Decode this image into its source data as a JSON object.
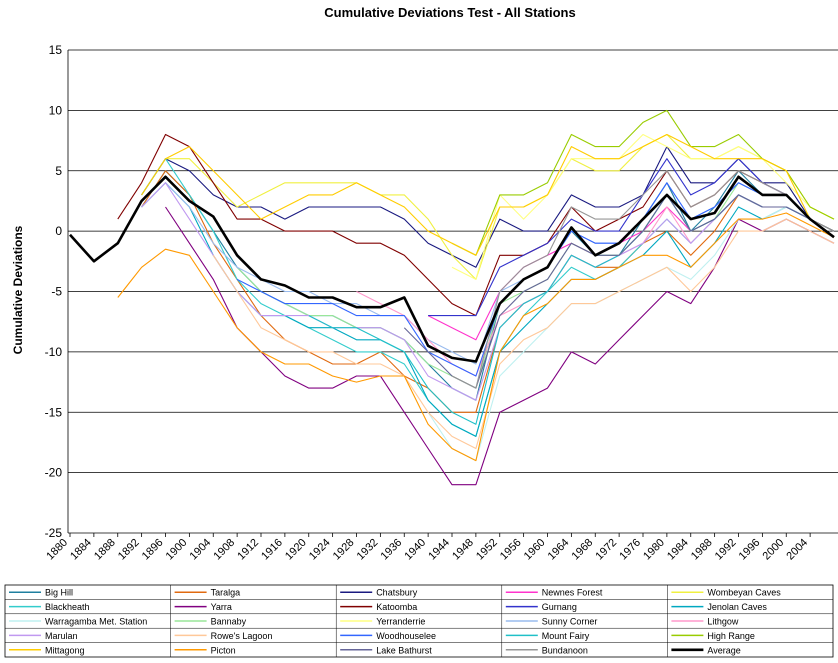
{
  "chart_data": {
    "type": "line",
    "title": "Cumulative Deviations Test - All Stations",
    "y_label": "Cumulative Deviations",
    "x": [
      1880,
      1884,
      1888,
      1892,
      1896,
      1900,
      1904,
      1908,
      1912,
      1916,
      1920,
      1924,
      1928,
      1932,
      1936,
      1940,
      1944,
      1948,
      1952,
      1956,
      1960,
      1964,
      1968,
      1972,
      1976,
      1980,
      1984,
      1988,
      1992,
      1996,
      2000,
      2004,
      2008
    ],
    "xlim": [
      1880,
      2008
    ],
    "xticks": [
      1880,
      1884,
      1888,
      1892,
      1896,
      1900,
      1904,
      1908,
      1912,
      1916,
      1920,
      1924,
      1928,
      1932,
      1936,
      1940,
      1944,
      1948,
      1952,
      1956,
      1960,
      1964,
      1968,
      1972,
      1976,
      1980,
      1984,
      1988,
      1992,
      1996,
      2000,
      2004
    ],
    "ylim": [
      -25,
      15
    ],
    "yticks": [
      -25,
      -20,
      -15,
      -10,
      -5,
      0,
      5,
      10,
      15
    ],
    "grid": true,
    "series": [
      {
        "name": "Big Hill",
        "color": "#1f7f9f",
        "values": [
          null,
          null,
          null,
          2,
          5,
          3,
          0,
          -3,
          -5,
          -6,
          -7,
          -7,
          -8,
          -8,
          -9,
          -11,
          -13,
          -14,
          -6,
          -4,
          -3,
          0,
          -2,
          -2,
          1,
          4,
          0,
          2,
          5,
          3,
          3,
          1,
          0
        ]
      },
      {
        "name": "Taralga",
        "color": "#e06a10",
        "values": [
          null,
          null,
          null,
          2,
          5,
          3,
          -1,
          -4,
          -7,
          -9,
          -10,
          -11,
          -11,
          -10,
          -12,
          -13,
          -15,
          -15,
          -8,
          -6,
          -5,
          -2,
          -3,
          -3,
          -1,
          0,
          -2,
          0,
          3,
          2,
          2,
          1,
          0
        ]
      },
      {
        "name": "Chatsbury",
        "color": "#1a1a80",
        "values": [
          null,
          null,
          null,
          3,
          6,
          5,
          3,
          2,
          2,
          1,
          2,
          2,
          2,
          2,
          1,
          -1,
          -2,
          -3,
          1,
          0,
          0,
          3,
          2,
          2,
          3,
          7,
          4,
          4,
          6,
          4,
          4,
          1,
          0
        ]
      },
      {
        "name": "Newnes Forest",
        "color": "#ff33cc",
        "values": [
          null,
          null,
          null,
          null,
          null,
          null,
          null,
          null,
          null,
          null,
          null,
          null,
          null,
          null,
          null,
          -7,
          -8,
          -9,
          -5,
          -3,
          -2,
          -1,
          -2,
          -1,
          0,
          2,
          0,
          1,
          3,
          2,
          2,
          1,
          0
        ]
      },
      {
        "name": "Wombeyan Caves",
        "color": "#f0f040",
        "values": [
          null,
          null,
          null,
          3,
          6,
          6,
          4,
          2,
          3,
          4,
          4,
          4,
          4,
          3,
          3,
          1,
          -2,
          -4,
          2,
          2,
          3,
          6,
          5,
          5,
          7,
          8,
          6,
          6,
          7,
          6,
          5,
          2,
          1
        ]
      },
      {
        "name": "Blackheath",
        "color": "#33cccc",
        "values": [
          null,
          null,
          null,
          3,
          6,
          3,
          0,
          -4,
          -6,
          -7,
          -8,
          -9,
          -10,
          -10,
          -11,
          -14,
          -16,
          -17,
          -10,
          -7,
          -5,
          -3,
          -4,
          -3,
          -1,
          1,
          -1,
          1,
          3,
          2,
          2,
          1,
          -0.5
        ]
      },
      {
        "name": "Yarra",
        "color": "#800080",
        "values": [
          null,
          null,
          null,
          null,
          2,
          -1,
          -4,
          -8,
          -10,
          -12,
          -13,
          -13,
          -12,
          -12,
          -15,
          -18,
          -21,
          -21,
          -15,
          -14,
          -13,
          -10,
          -11,
          -9,
          -7,
          -5,
          -6,
          -3,
          1,
          0,
          1,
          0,
          -1
        ]
      },
      {
        "name": "Katoomba",
        "color": "#800000",
        "values": [
          null,
          null,
          1,
          4,
          8,
          7,
          4,
          1,
          1,
          0,
          0,
          0,
          -1,
          -1,
          -2,
          -4,
          -6,
          -7,
          -2,
          -2,
          -1,
          2,
          0,
          1,
          2,
          5,
          2,
          3,
          5,
          4,
          3,
          1,
          0
        ]
      },
      {
        "name": "Gurnang",
        "color": "#3333cc",
        "values": [
          null,
          null,
          null,
          null,
          null,
          null,
          null,
          null,
          null,
          null,
          null,
          null,
          null,
          null,
          null,
          -7,
          -7,
          -7,
          -3,
          -2,
          -1,
          1,
          0,
          0,
          3,
          6,
          3,
          4,
          6,
          4,
          3,
          1,
          0
        ]
      },
      {
        "name": "Jenolan Caves",
        "color": "#00a8c0",
        "values": [
          null,
          null,
          null,
          2,
          4,
          2,
          -2,
          -5,
          -7,
          -7,
          -8,
          -8,
          -9,
          -9,
          -10,
          -14,
          -16,
          -17,
          -10,
          -8,
          -6,
          -4,
          -4,
          -3,
          -2,
          0,
          -3,
          -1,
          2,
          1,
          2,
          1,
          0
        ]
      },
      {
        "name": "Warragamba Met. Station",
        "color": "#bff0f0",
        "values": [
          null,
          null,
          null,
          null,
          null,
          null,
          null,
          null,
          null,
          null,
          null,
          null,
          null,
          null,
          null,
          -15,
          -18,
          -19,
          -12,
          -10,
          -8,
          -6,
          -6,
          -5,
          -4,
          -3,
          -4,
          -2,
          1,
          1,
          2,
          1,
          0
        ]
      },
      {
        "name": "Bannaby",
        "color": "#99e699",
        "values": [
          null,
          null,
          null,
          null,
          null,
          null,
          null,
          -3,
          -5,
          -6,
          -7,
          -7,
          -8,
          -8,
          -9,
          -11,
          -12,
          -13,
          -6,
          -5,
          -4,
          -1,
          -2,
          -2,
          0,
          3,
          0,
          1,
          4,
          3,
          3,
          1,
          0
        ]
      },
      {
        "name": "Yerranderrie",
        "color": "#ffff80",
        "values": [
          null,
          null,
          null,
          null,
          null,
          null,
          null,
          null,
          null,
          null,
          null,
          null,
          null,
          null,
          null,
          null,
          -3,
          -4,
          3,
          1,
          3,
          6,
          6,
          6,
          8,
          7,
          6,
          6,
          7,
          6,
          4,
          2,
          1
        ]
      },
      {
        "name": "Sunny Corner",
        "color": "#99bbee",
        "values": [
          null,
          null,
          null,
          2,
          4,
          2,
          -1,
          -3,
          -4,
          -5,
          -5,
          -6,
          -6,
          -7,
          -7,
          -9,
          -10,
          -11,
          -5,
          -4,
          -3,
          0,
          -1,
          -1,
          1,
          3,
          1,
          2,
          4,
          3,
          3,
          1,
          0
        ]
      },
      {
        "name": "Lithgow",
        "color": "#ff99cc",
        "values": [
          null,
          null,
          null,
          null,
          null,
          null,
          null,
          null,
          null,
          null,
          null,
          null,
          -5,
          -6,
          -7,
          -9,
          -11,
          -12,
          -7,
          -6,
          -5,
          -2,
          -3,
          -2,
          -1,
          2,
          -1,
          1,
          3,
          2,
          2,
          1,
          0
        ]
      },
      {
        "name": "Marulan",
        "color": "#c099f0",
        "values": [
          null,
          null,
          null,
          2,
          4,
          1,
          -2,
          -5,
          -7,
          -7,
          -7,
          -8,
          -8,
          -8,
          -9,
          -12,
          -13,
          -14,
          -8,
          -6,
          -5,
          -2,
          -3,
          -2,
          -1,
          1,
          -1,
          1,
          3,
          2,
          2,
          1,
          0
        ]
      },
      {
        "name": "Rowe's Lagoon",
        "color": "#ffc899",
        "values": [
          null,
          null,
          null,
          null,
          null,
          null,
          -2,
          -5,
          -8,
          -9,
          -10,
          -10,
          -11,
          -11,
          -12,
          -15,
          -17,
          -18,
          -11,
          -9,
          -8,
          -6,
          -6,
          -5,
          -4,
          -3,
          -5,
          -3,
          0,
          0,
          1,
          0,
          -1
        ]
      },
      {
        "name": "Woodhouselee",
        "color": "#3366ff",
        "values": [
          null,
          null,
          null,
          null,
          null,
          null,
          null,
          -4,
          -5,
          -6,
          -6,
          -6,
          -7,
          -7,
          -7,
          -10,
          -11,
          -12,
          -6,
          -4,
          -3,
          0,
          -1,
          -1,
          1,
          4,
          1,
          2,
          4,
          3,
          3,
          1,
          0
        ]
      },
      {
        "name": "Mount Fairy",
        "color": "#20c0c8",
        "values": [
          null,
          null,
          null,
          null,
          null,
          null,
          null,
          null,
          null,
          null,
          -7,
          -8,
          -8,
          -9,
          -10,
          -13,
          -15,
          -16,
          -8,
          -6,
          -5,
          -2,
          -3,
          -2,
          0,
          3,
          0,
          1,
          3,
          2,
          2,
          1,
          0
        ]
      },
      {
        "name": "High Range",
        "color": "#99cc00",
        "values": [
          null,
          null,
          null,
          null,
          null,
          null,
          null,
          null,
          null,
          null,
          null,
          null,
          null,
          null,
          null,
          null,
          -1,
          -2,
          3,
          3,
          4,
          8,
          7,
          7,
          9,
          10,
          7,
          7,
          8,
          6,
          5,
          2,
          1
        ]
      },
      {
        "name": "Mittagong",
        "color": "#ffcc00",
        "values": [
          null,
          null,
          null,
          3,
          6,
          7,
          5,
          3,
          1,
          2,
          3,
          3,
          4,
          3,
          2,
          0,
          -1,
          -2,
          2,
          2,
          3,
          7,
          6,
          6,
          7,
          8,
          7,
          6,
          6,
          6,
          5,
          1,
          0
        ]
      },
      {
        "name": "Picton",
        "color": "#ff9900",
        "values": [
          null,
          null,
          -5.5,
          -3,
          -1.5,
          -2,
          -5,
          -8,
          -10,
          -11,
          -11,
          -12,
          -12.5,
          -12,
          -12,
          -16,
          -18,
          -19,
          -10,
          -7,
          -6,
          -4,
          -4,
          -3,
          -2,
          -2,
          -3,
          -1,
          1,
          1,
          1.5,
          0.5,
          -0.5
        ]
      },
      {
        "name": "Lake Bathurst",
        "color": "#666699",
        "values": [
          null,
          null,
          null,
          null,
          null,
          null,
          null,
          null,
          null,
          null,
          null,
          null,
          null,
          null,
          -8,
          -10,
          -12,
          -13,
          -7,
          -5,
          -4,
          -1,
          -2,
          -2,
          0,
          3,
          0,
          1,
          3,
          2,
          2,
          1,
          0
        ]
      },
      {
        "name": "Bundanoon",
        "color": "#969696",
        "values": [
          null,
          null,
          null,
          null,
          null,
          null,
          null,
          null,
          null,
          null,
          null,
          null,
          null,
          null,
          null,
          null,
          -12,
          -13,
          -5,
          -3,
          -2,
          2,
          1,
          1,
          3,
          5,
          2,
          3,
          5,
          4,
          3,
          1,
          0
        ]
      },
      {
        "name": "Average",
        "color": "#000000",
        "values": [
          -0.3,
          -2.5,
          -1,
          2.5,
          4.5,
          2.5,
          1.2,
          -2,
          -4,
          -4.5,
          -5.5,
          -5.5,
          -6.3,
          -6.3,
          -5.5,
          -9.5,
          -10.5,
          -10.8,
          -6,
          -4,
          -3,
          0.3,
          -2,
          -1,
          1,
          3,
          1,
          1.5,
          4.5,
          3,
          3,
          1,
          -0.5
        ]
      }
    ]
  }
}
